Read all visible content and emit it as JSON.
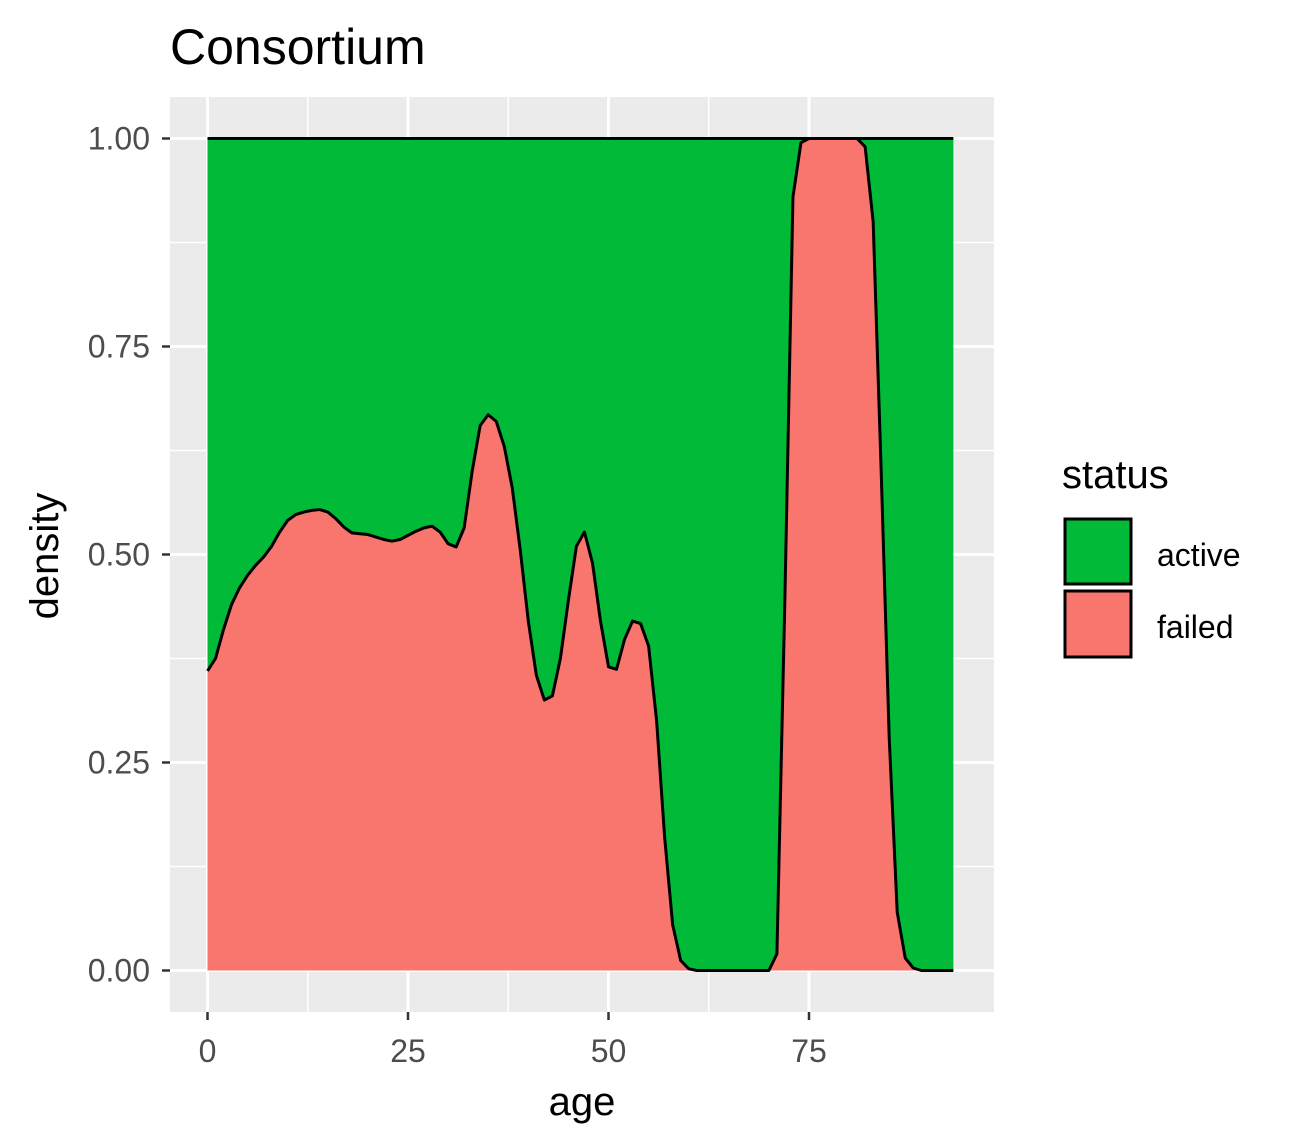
{
  "chart_data": {
    "type": "area",
    "subtype": "conditional density (position fill)",
    "title": "Consortium",
    "xlabel": "age",
    "ylabel": "density",
    "xlim": [
      -9,
      96
    ],
    "ylim": [
      -0.05,
      1.05
    ],
    "x_ticks": [
      0,
      25,
      50,
      75
    ],
    "x_tick_labels": [
      "0",
      "25",
      "50",
      "75"
    ],
    "y_ticks": [
      0,
      0.25,
      0.5,
      0.75,
      1.0
    ],
    "y_tick_labels": [
      "0.00",
      "0.25",
      "0.50",
      "0.75",
      "1.00"
    ],
    "grid": true,
    "legend": {
      "title": "status",
      "position": "right",
      "entries": [
        {
          "label": "active",
          "color": "#00BA38"
        },
        {
          "label": "failed",
          "color": "#F8766D"
        }
      ]
    },
    "series": [
      {
        "name": "active",
        "color": "#00BA38",
        "role": "top band (1 minus failed)"
      },
      {
        "name": "failed",
        "color": "#F8766D",
        "role": "bottom band"
      }
    ],
    "failed_boundary": {
      "x": [
        0,
        1,
        2,
        3,
        4,
        5,
        6,
        7,
        8,
        9,
        10,
        11,
        12,
        13,
        14,
        15,
        16,
        17,
        18,
        19,
        20,
        21,
        22,
        23,
        24,
        25,
        26,
        27,
        28,
        29,
        30,
        31,
        32,
        33,
        34,
        35,
        36,
        37,
        38,
        39,
        40,
        41,
        42,
        43,
        44,
        45,
        46,
        47,
        48,
        49,
        50,
        51,
        52,
        53,
        54,
        55,
        56,
        57,
        58,
        59,
        60,
        61,
        62,
        63,
        64,
        65,
        66,
        67,
        68,
        69,
        70,
        71,
        72,
        73,
        74,
        75,
        76,
        77,
        78,
        79,
        80,
        81,
        82,
        83,
        84,
        85,
        86,
        87,
        88,
        89,
        90,
        91,
        92,
        93
      ],
      "y": [
        0.36,
        0.375,
        0.41,
        0.44,
        0.46,
        0.475,
        0.487,
        0.497,
        0.51,
        0.527,
        0.541,
        0.548,
        0.551,
        0.553,
        0.554,
        0.551,
        0.543,
        0.533,
        0.526,
        0.525,
        0.524,
        0.521,
        0.518,
        0.516,
        0.518,
        0.523,
        0.528,
        0.532,
        0.534,
        0.527,
        0.513,
        0.509,
        0.532,
        0.6,
        0.655,
        0.668,
        0.66,
        0.63,
        0.58,
        0.505,
        0.42,
        0.355,
        0.325,
        0.33,
        0.375,
        0.445,
        0.51,
        0.527,
        0.49,
        0.42,
        0.365,
        0.362,
        0.398,
        0.42,
        0.417,
        0.39,
        0.3,
        0.16,
        0.055,
        0.012,
        0.002,
        0.0,
        0.0,
        0.0,
        0.0,
        0.0,
        0.0,
        0.0,
        0.0,
        0.0,
        0.0,
        0.02,
        0.45,
        0.93,
        0.995,
        1.0,
        1.0,
        1.0,
        1.0,
        1.0,
        1.0,
        1.0,
        0.99,
        0.9,
        0.6,
        0.28,
        0.07,
        0.015,
        0.003,
        0.0,
        0.0,
        0.0,
        0.0,
        0.0
      ]
    }
  }
}
